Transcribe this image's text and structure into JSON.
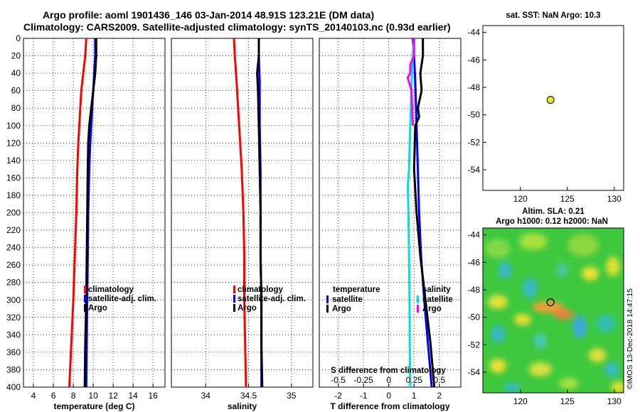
{
  "figure": {
    "title_line1": "Argo profile: aoml 1901436_146 03-Jan-2014 48.91S 123.21E (DM data)",
    "title_line2": "Climatology: CARS2009. Satellite-adjusted climatology: synTS_20140103.nc (0.93d earlier)",
    "watermark": "©IMOS 13-Dec-2018 14:47:15"
  },
  "colors": {
    "climatology": "#ff0000",
    "satellite": "#0000ff",
    "argo": "#000000",
    "satellite_s": "#00e0e0",
    "satellite_s_alt": "#ff00ff",
    "marker": "#e8e820"
  },
  "chart_data": [
    {
      "type": "line",
      "id": "temperature",
      "xlabel": "temperature (deg C)",
      "xlim": [
        3,
        17.2
      ],
      "ylim": [
        400,
        0
      ],
      "xticks": [
        "4",
        "6",
        "8",
        "10",
        "12",
        "14",
        "16"
      ],
      "xtick_values": [
        4,
        6,
        8,
        10,
        12,
        14,
        16
      ],
      "yticks": [
        "0",
        "20",
        "40",
        "60",
        "80",
        "100",
        "120",
        "140",
        "160",
        "180",
        "200",
        "220",
        "240",
        "260",
        "280",
        "300",
        "320",
        "340",
        "360",
        "380",
        "400"
      ],
      "ytick_values": [
        0,
        20,
        40,
        60,
        80,
        100,
        120,
        140,
        160,
        180,
        200,
        220,
        240,
        260,
        280,
        300,
        320,
        340,
        360,
        380,
        400
      ],
      "grid": true,
      "legend": [
        "climatology",
        "satellite-adj. clim.",
        "Argo"
      ],
      "series": [
        {
          "name": "climatology",
          "color": "#ff0000",
          "depth": [
            0,
            20,
            40,
            60,
            80,
            100,
            120,
            150,
            200,
            250,
            300,
            350,
            400
          ],
          "values": [
            9.3,
            9.2,
            9.0,
            8.8,
            8.7,
            8.6,
            8.5,
            8.4,
            8.3,
            8.15,
            8.0,
            7.8,
            7.6
          ]
        },
        {
          "name": "satellite-adj. clim.",
          "color": "#0000ff",
          "depth": [
            0,
            20,
            40,
            60,
            80,
            100,
            120,
            150,
            200,
            250,
            300,
            350,
            400
          ],
          "values": [
            10.2,
            10.2,
            10.1,
            10.0,
            9.9,
            9.8,
            9.7,
            9.6,
            9.5,
            9.45,
            9.4,
            9.35,
            9.3
          ]
        },
        {
          "name": "Argo",
          "color": "#000000",
          "depth": [
            0,
            20,
            40,
            60,
            80,
            100,
            120,
            150,
            200,
            250,
            300,
            350,
            400
          ],
          "values": [
            10.3,
            10.3,
            10.2,
            10.0,
            9.8,
            9.6,
            9.5,
            9.45,
            9.4,
            9.35,
            9.3,
            9.2,
            9.15
          ]
        }
      ]
    },
    {
      "type": "line",
      "id": "salinity",
      "xlabel": "salinity",
      "xlim": [
        33.6,
        35.25
      ],
      "ylim": [
        400,
        0
      ],
      "xticks": [
        "34",
        "34.5",
        "35"
      ],
      "xtick_values": [
        34,
        34.5,
        35
      ],
      "grid": true,
      "legend": [
        "climatology",
        "satellite-adj. clim.",
        "Argo"
      ],
      "series": [
        {
          "name": "climatology",
          "color": "#ff0000",
          "depth": [
            0,
            20,
            50,
            100,
            150,
            200,
            250,
            300,
            350,
            400
          ],
          "values": [
            34.33,
            34.34,
            34.36,
            34.39,
            34.42,
            34.44,
            34.45,
            34.45,
            34.46,
            34.47
          ]
        },
        {
          "name": "satellite-adj. clim.",
          "color": "#0000ff",
          "depth": [
            0,
            20,
            50,
            100,
            150,
            200,
            250,
            300,
            350,
            400
          ],
          "values": [
            34.62,
            34.62,
            34.63,
            34.63,
            34.64,
            34.64,
            34.64,
            34.65,
            34.65,
            34.65
          ]
        },
        {
          "name": "Argo",
          "color": "#000000",
          "depth": [
            0,
            20,
            40,
            60,
            100,
            150,
            200,
            250,
            300,
            350,
            400
          ],
          "values": [
            34.62,
            34.62,
            34.6,
            34.61,
            34.62,
            34.63,
            34.64,
            34.64,
            34.65,
            34.65,
            34.66
          ]
        }
      ]
    },
    {
      "type": "line",
      "id": "differences",
      "xlabel": "T difference from climatology",
      "inner_label": "S difference from climatology",
      "xlim": [
        -2.75,
        2.85
      ],
      "ylim": [
        400,
        0
      ],
      "xticks": [
        "-2",
        "-1",
        "0",
        "1",
        "2"
      ],
      "xtick_values": [
        -2,
        -1,
        0,
        1,
        2
      ],
      "s_ticks": [
        "-0.5",
        "-0.25",
        "0",
        "0.25",
        "0.5"
      ],
      "s_tick_positions": [
        -2,
        -1,
        0,
        1,
        2
      ],
      "grid": true,
      "legend_left_title": "temperature",
      "legend_right_title": "salinity",
      "legend": [
        "satellite",
        "Argo"
      ],
      "series": [
        {
          "name": "T satellite",
          "color": "#0000ff",
          "depth": [
            0,
            20,
            50,
            100,
            150,
            200,
            250,
            300,
            350,
            400
          ],
          "values": [
            0.95,
            1.0,
            1.05,
            1.1,
            1.15,
            1.2,
            1.28,
            1.4,
            1.55,
            1.7
          ]
        },
        {
          "name": "T Argo",
          "color": "#000000",
          "depth": [
            0,
            20,
            40,
            60,
            80,
            90,
            100,
            150,
            200,
            250,
            300,
            350,
            400
          ],
          "values": [
            1.35,
            1.35,
            1.25,
            1.3,
            1.15,
            1.2,
            1.05,
            1.0,
            1.1,
            1.25,
            1.45,
            1.65,
            1.8
          ]
        },
        {
          "name": "S satellite",
          "color": "#00e0e0",
          "depth": [
            0,
            20,
            50,
            100,
            150,
            170,
            200,
            250,
            300,
            350,
            400
          ],
          "values": [
            1.0,
            0.95,
            0.9,
            0.85,
            0.8,
            0.75,
            0.78,
            0.8,
            0.82,
            0.83,
            0.85
          ]
        },
        {
          "name": "S Argo",
          "color": "#ff00ff",
          "depth": [
            0,
            20,
            30,
            40,
            45,
            60,
            100
          ],
          "values": [
            1.0,
            1.0,
            0.85,
            0.85,
            0.75,
            0.9,
            0.95
          ]
        }
      ]
    },
    {
      "type": "scatter",
      "id": "sst-map",
      "title": "sat. SST: NaN Argo: 10.3",
      "xlim": [
        116,
        131
      ],
      "ylim": [
        -55.5,
        -43.5
      ],
      "xticks": [
        "120",
        "125",
        "130"
      ],
      "xtick_values": [
        120,
        125,
        130
      ],
      "yticks": [
        "-44",
        "-46",
        "-48",
        "-50",
        "-52",
        "-54"
      ],
      "ytick_values": [
        -44,
        -46,
        -48,
        -50,
        -52,
        -54
      ],
      "points": [
        {
          "lon": 123.21,
          "lat": -48.91
        }
      ]
    },
    {
      "type": "heatmap",
      "id": "sla-map",
      "title_line1": "Altim. SLA: 0.21",
      "title_line2": "Argo h1000: 0.12 h2000: NaN",
      "xlim": [
        116,
        131
      ],
      "ylim": [
        -55.5,
        -43.5
      ],
      "xticks": [
        "120",
        "125",
        "130"
      ],
      "xtick_values": [
        120,
        125,
        130
      ],
      "yticks": [
        "-44",
        "-46",
        "-48",
        "-50",
        "-52",
        "-54"
      ],
      "ytick_values": [
        -44,
        -46,
        -48,
        -50,
        -52,
        -54
      ],
      "points": [
        {
          "lon": 123.21,
          "lat": -48.91
        }
      ]
    }
  ]
}
